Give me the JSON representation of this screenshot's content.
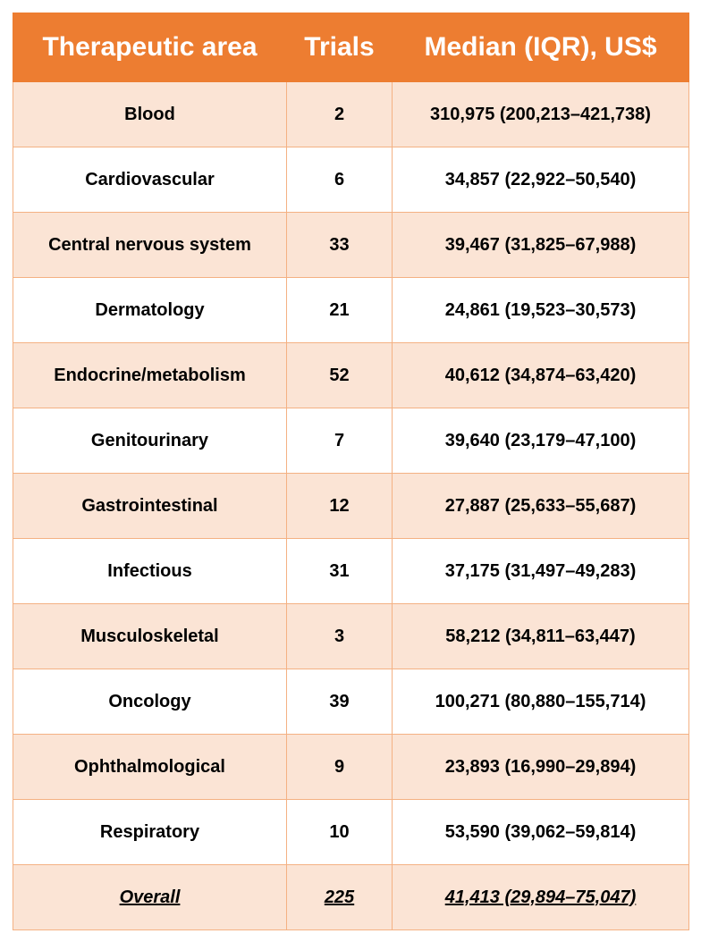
{
  "table": {
    "header": [
      "Therapeutic area",
      "Trials",
      "Median (IQR), US$"
    ],
    "rows": [
      [
        "Blood",
        2,
        "310,975 (200,213–421,738)"
      ],
      [
        "Cardiovascular",
        6,
        "34,857 (22,922–50,540)"
      ],
      [
        "Central nervous system",
        33,
        "39,467 (31,825–67,988)"
      ],
      [
        "Dermatology",
        21,
        "24,861 (19,523–30,573)"
      ],
      [
        "Endocrine/metabolism",
        52,
        "40,612 (34,874–63,420)"
      ],
      [
        "Genitourinary",
        7,
        "39,640 (23,179–47,100)"
      ],
      [
        "Gastrointestinal",
        12,
        "27,887 (25,633–55,687)"
      ],
      [
        "Infectious",
        31,
        "37,175 (31,497–49,283)"
      ],
      [
        "Musculoskeletal",
        3,
        "58,212 (34,811–63,447)"
      ],
      [
        "Oncology",
        39,
        "100,271 (80,880–155,714)"
      ],
      [
        "Ophthalmological",
        9,
        "23,893 (16,990–29,894)"
      ],
      [
        "Respiratory",
        10,
        "53,590 (39,062–59,814)"
      ]
    ],
    "total": [
      "Overall",
      225,
      "41,413 (29,894–75,047)"
    ]
  }
}
